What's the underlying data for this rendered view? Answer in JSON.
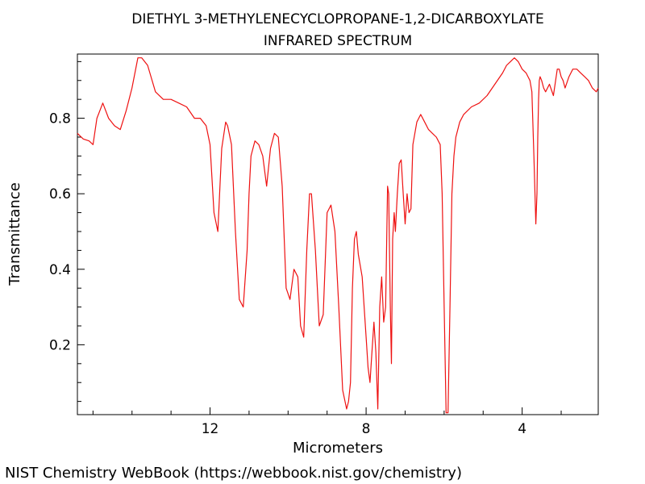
{
  "chart_data": {
    "type": "line",
    "title": "DIETHYL 3-METHYLENECYCLOPROPANE-1,2-DICARBOXYLATE",
    "subtitle": "INFRARED SPECTRUM",
    "xlabel": "Micrometers",
    "ylabel": "Transmittance",
    "xlim": [
      15.4,
      2.05
    ],
    "ylim": [
      0.015,
      0.97
    ],
    "x_direction": "reversed",
    "x_ticks": [
      12,
      8,
      4
    ],
    "x_tick_labels": [
      "12",
      "8",
      "4"
    ],
    "y_ticks": [
      0.2,
      0.4,
      0.6,
      0.8
    ],
    "y_tick_labels": [
      "0.2",
      "0.4",
      "0.6",
      "0.8"
    ],
    "grid": false,
    "line_color": "#ee1111",
    "series": [
      {
        "x": [
          15.4,
          15.25,
          15.1,
          15.0,
          14.9,
          14.75,
          14.6,
          14.45,
          14.3,
          14.15,
          14.0,
          13.85,
          13.75,
          13.6,
          13.4,
          13.2,
          13.0,
          12.8,
          12.6,
          12.4,
          12.25,
          12.1,
          12.0,
          11.9,
          11.8,
          11.7,
          11.6,
          11.55,
          11.45,
          11.35,
          11.25,
          11.15,
          11.05,
          11.0,
          10.95,
          10.85,
          10.75,
          10.65,
          10.55,
          10.45,
          10.35,
          10.25,
          10.15,
          10.05,
          9.95,
          9.85,
          9.75,
          9.68,
          9.6,
          9.52,
          9.45,
          9.4,
          9.3,
          9.2,
          9.1,
          9.0,
          8.9,
          8.8,
          8.7,
          8.6,
          8.5,
          8.45,
          8.4,
          8.35,
          8.3,
          8.25,
          8.2,
          8.1,
          8.0,
          7.95,
          7.9,
          7.85,
          7.8,
          7.75,
          7.7,
          7.65,
          7.6,
          7.55,
          7.5,
          7.45,
          7.42,
          7.38,
          7.35,
          7.32,
          7.28,
          7.25,
          7.2,
          7.15,
          7.1,
          7.05,
          7.0,
          6.95,
          6.9,
          6.85,
          6.8,
          6.7,
          6.6,
          6.5,
          6.4,
          6.3,
          6.2,
          6.1,
          6.05,
          6.0,
          5.95,
          5.9,
          5.85,
          5.8,
          5.75,
          5.7,
          5.6,
          5.5,
          5.3,
          5.1,
          4.9,
          4.7,
          4.5,
          4.4,
          4.3,
          4.2,
          4.1,
          4.0,
          3.9,
          3.85,
          3.8,
          3.75,
          3.7,
          3.65,
          3.62,
          3.6,
          3.58,
          3.56,
          3.54,
          3.5,
          3.45,
          3.4,
          3.3,
          3.2,
          3.1,
          3.05,
          3.0,
          2.95,
          2.9,
          2.8,
          2.7,
          2.6,
          2.5,
          2.4,
          2.3,
          2.2,
          2.1,
          2.05
        ],
        "y": [
          0.76,
          0.745,
          0.74,
          0.73,
          0.8,
          0.84,
          0.8,
          0.78,
          0.77,
          0.82,
          0.88,
          0.96,
          0.96,
          0.94,
          0.87,
          0.85,
          0.85,
          0.84,
          0.83,
          0.8,
          0.8,
          0.78,
          0.73,
          0.55,
          0.5,
          0.72,
          0.79,
          0.78,
          0.73,
          0.5,
          0.32,
          0.3,
          0.45,
          0.6,
          0.7,
          0.74,
          0.73,
          0.7,
          0.62,
          0.72,
          0.76,
          0.75,
          0.62,
          0.35,
          0.32,
          0.4,
          0.38,
          0.25,
          0.22,
          0.45,
          0.6,
          0.6,
          0.45,
          0.25,
          0.28,
          0.55,
          0.57,
          0.5,
          0.3,
          0.08,
          0.03,
          0.05,
          0.1,
          0.35,
          0.48,
          0.5,
          0.44,
          0.38,
          0.22,
          0.14,
          0.1,
          0.18,
          0.26,
          0.18,
          0.03,
          0.3,
          0.38,
          0.26,
          0.3,
          0.62,
          0.6,
          0.3,
          0.15,
          0.48,
          0.55,
          0.5,
          0.6,
          0.68,
          0.69,
          0.6,
          0.52,
          0.6,
          0.55,
          0.56,
          0.73,
          0.79,
          0.81,
          0.79,
          0.77,
          0.76,
          0.75,
          0.73,
          0.6,
          0.3,
          0.02,
          0.02,
          0.3,
          0.6,
          0.7,
          0.75,
          0.79,
          0.81,
          0.83,
          0.84,
          0.86,
          0.89,
          0.92,
          0.94,
          0.95,
          0.96,
          0.95,
          0.93,
          0.92,
          0.91,
          0.9,
          0.87,
          0.7,
          0.52,
          0.6,
          0.75,
          0.85,
          0.9,
          0.91,
          0.9,
          0.88,
          0.87,
          0.89,
          0.86,
          0.93,
          0.93,
          0.91,
          0.9,
          0.88,
          0.91,
          0.93,
          0.93,
          0.92,
          0.91,
          0.9,
          0.88,
          0.87,
          0.88
        ]
      }
    ]
  },
  "footer": {
    "credit": "NIST Chemistry WebBook (https://webbook.nist.gov/chemistry)"
  }
}
